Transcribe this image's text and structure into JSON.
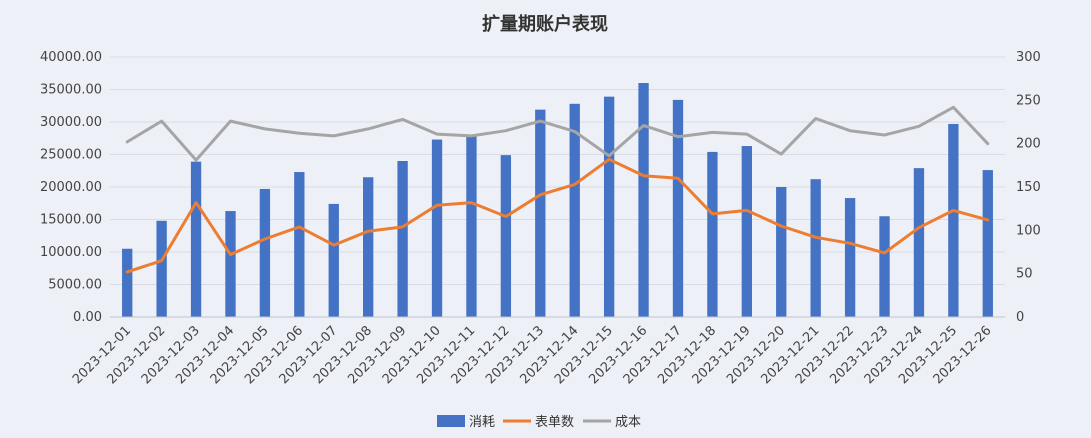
{
  "chart_data": {
    "type": "bar",
    "title": "扩量期账户表现",
    "categories": [
      "2023-12-01",
      "2023-12-02",
      "2023-12-03",
      "2023-12-04",
      "2023-12-05",
      "2023-12-06",
      "2023-12-07",
      "2023-12-08",
      "2023-12-09",
      "2023-12-10",
      "2023-12-11",
      "2023-12-12",
      "2023-12-13",
      "2023-12-14",
      "2023-12-15",
      "2023-12-16",
      "2023-12-17",
      "2023-12-18",
      "2023-12-19",
      "2023-12-20",
      "2023-12-21",
      "2023-12-22",
      "2023-12-23",
      "2023-12-24",
      "2023-12-25",
      "2023-12-26"
    ],
    "y_left": {
      "ylim": [
        0,
        40000
      ],
      "ticks": [
        "0.00",
        "5000.00",
        "10000.00",
        "15000.00",
        "20000.00",
        "25000.00",
        "30000.00",
        "35000.00",
        "40000.00"
      ]
    },
    "y_right": {
      "ylim": [
        0,
        300
      ],
      "ticks": [
        "0",
        "50",
        "100",
        "150",
        "200",
        "250",
        "300"
      ]
    },
    "series": [
      {
        "name": "消耗",
        "type": "bar",
        "axis": "left",
        "color": "#4472c4",
        "values": [
          10500,
          14800,
          23900,
          16300,
          19700,
          22300,
          17400,
          21500,
          24000,
          27300,
          27800,
          24900,
          31900,
          32800,
          33900,
          36000,
          33400,
          25400,
          26300,
          20000,
          21200,
          18300,
          15500,
          22900,
          29700,
          22600
        ]
      },
      {
        "name": "表单数",
        "type": "line",
        "axis": "right",
        "color": "#ed7d31",
        "values": [
          52,
          65,
          132,
          72,
          90,
          104,
          83,
          99,
          104,
          129,
          132,
          116,
          141,
          153,
          182,
          163,
          160,
          119,
          123,
          105,
          92,
          85,
          74,
          103,
          123,
          112
        ]
      },
      {
        "name": "成本",
        "type": "line",
        "axis": "right",
        "color": "#a5a5a5",
        "values": [
          202,
          226,
          181,
          226,
          217,
          212,
          209,
          217,
          228,
          211,
          209,
          215,
          226,
          214,
          186,
          221,
          208,
          213,
          211,
          188,
          229,
          215,
          210,
          220,
          242,
          200
        ]
      }
    ],
    "legend_position": "bottom",
    "grid": true
  }
}
